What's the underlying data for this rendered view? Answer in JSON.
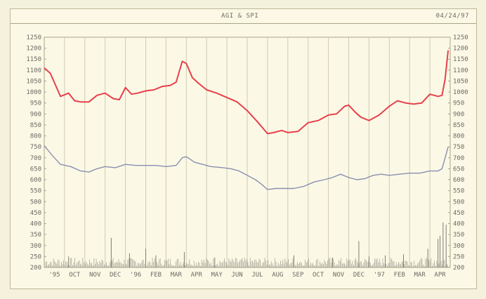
{
  "header": {
    "title": "AGI & SPI",
    "date": "04/24/97"
  },
  "chart_data": {
    "type": "line",
    "title": "AGI & SPI",
    "xlabel": "",
    "ylabel": "",
    "ylim": [
      200,
      1250
    ],
    "yticks": [
      200,
      250,
      300,
      350,
      400,
      450,
      500,
      550,
      600,
      650,
      700,
      750,
      800,
      850,
      900,
      950,
      1000,
      1050,
      1100,
      1150,
      1200,
      1250
    ],
    "x_month_labels": [
      "'95",
      "OCT",
      "NOV",
      "DEC",
      "'96",
      "FEB",
      "MAR",
      "APR",
      "MAY",
      "JUN",
      "JUL",
      "AUG",
      "SEP",
      "OCT",
      "NOV",
      "DEC",
      "'97",
      "FEB",
      "MAR",
      "APR"
    ],
    "grid": true,
    "colors": {
      "upper": "#e8404a",
      "lower": "#8a8fb0",
      "volume": "#7e7c72"
    },
    "series": [
      {
        "role": "upper",
        "x": [
          0,
          0.3,
          0.8,
          1.2,
          1.5,
          1.8,
          2.2,
          2.6,
          3.0,
          3.4,
          3.7,
          4.0,
          4.3,
          4.6,
          5.0,
          5.4,
          5.8,
          6.2,
          6.5,
          6.8,
          7.0,
          7.3,
          7.6,
          8.0,
          8.5,
          9.0,
          9.5,
          10.0,
          10.5,
          11.0,
          11.3,
          11.7,
          12.0,
          12.5,
          13.0,
          13.5,
          14.0,
          14.4,
          14.8,
          15.0,
          15.3,
          15.6,
          16.0,
          16.5,
          17.0,
          17.4,
          17.8,
          18.2,
          18.6,
          19.0,
          19.4,
          19.6,
          19.75,
          19.9
        ],
        "y": [
          1110,
          1085,
          980,
          995,
          960,
          955,
          955,
          985,
          995,
          970,
          965,
          1020,
          990,
          995,
          1005,
          1010,
          1025,
          1030,
          1045,
          1140,
          1130,
          1065,
          1040,
          1010,
          995,
          975,
          955,
          915,
          865,
          810,
          815,
          825,
          815,
          820,
          860,
          870,
          895,
          900,
          935,
          940,
          910,
          885,
          870,
          895,
          935,
          960,
          950,
          945,
          950,
          990,
          980,
          985,
          1060,
          1190
        ]
      },
      {
        "role": "lower",
        "x": [
          0,
          0.4,
          0.8,
          1.3,
          1.8,
          2.2,
          2.6,
          3.0,
          3.5,
          4.0,
          4.5,
          5.0,
          5.5,
          6.0,
          6.5,
          6.8,
          7.0,
          7.4,
          7.8,
          8.2,
          8.8,
          9.2,
          9.6,
          10.0,
          10.4,
          10.7,
          11.0,
          11.4,
          11.8,
          12.3,
          12.8,
          13.3,
          13.8,
          14.2,
          14.6,
          15.0,
          15.4,
          15.8,
          16.2,
          16.6,
          17.0,
          17.5,
          18.0,
          18.5,
          19.0,
          19.4,
          19.6,
          19.75,
          19.9
        ],
        "y": [
          755,
          710,
          670,
          660,
          640,
          635,
          650,
          660,
          655,
          670,
          665,
          665,
          665,
          660,
          665,
          700,
          705,
          680,
          670,
          660,
          655,
          650,
          640,
          620,
          600,
          580,
          555,
          560,
          560,
          560,
          570,
          590,
          600,
          610,
          625,
          610,
          600,
          605,
          620,
          625,
          620,
          625,
          630,
          630,
          640,
          640,
          650,
          700,
          750
        ]
      }
    ],
    "volume_bars": {
      "x": [
        1.2,
        3.3,
        4.2,
        5.0,
        5.5,
        6.9,
        8.4,
        12.3,
        14.2,
        15.5,
        16.0,
        16.8,
        17.7,
        18.9,
        19.4,
        19.5,
        19.65,
        19.8
      ],
      "y": [
        250,
        335,
        265,
        285,
        255,
        270,
        245,
        255,
        245,
        320,
        250,
        255,
        260,
        285,
        330,
        345,
        405,
        395
      ]
    },
    "volume_baseline": 200
  }
}
